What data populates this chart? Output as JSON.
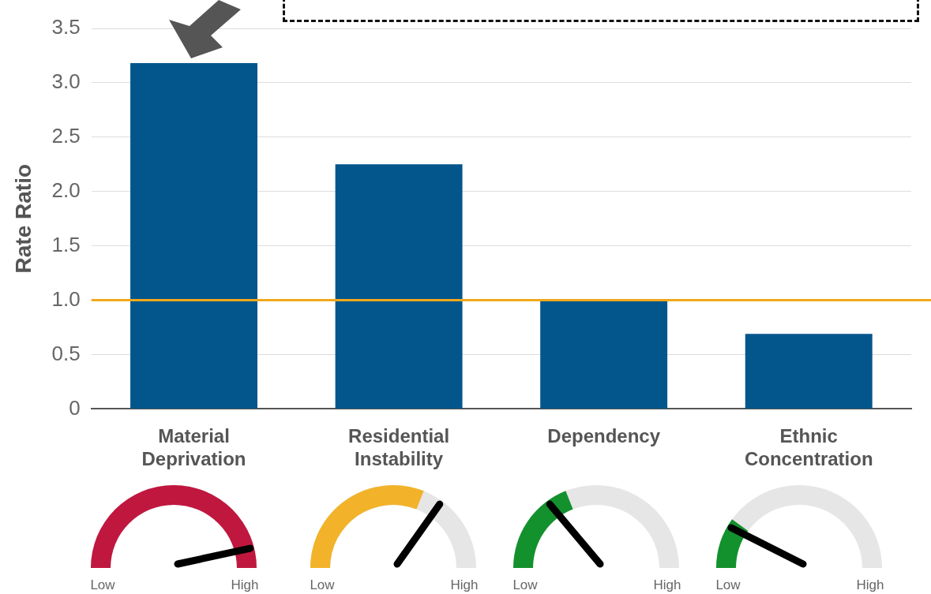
{
  "chart_data": {
    "type": "bar",
    "ylabel": "Rate Ratio",
    "categories": [
      "Material Deprivation",
      "Residential Instability",
      "Dependency",
      "Ethnic Concentration"
    ],
    "values": [
      3.18,
      2.25,
      1.0,
      0.69
    ],
    "color": "#03568c",
    "ylim": [
      0,
      3.5
    ],
    "yticks": [
      0,
      0.5,
      {
        "value": 1,
        "label": "1.0"
      },
      1.5,
      {
        "value": 2,
        "label": "2.0"
      },
      2.5,
      {
        "value": 3,
        "label": "3.0"
      },
      3.5
    ],
    "grid": "y",
    "legend": false,
    "ref_lines": [
      {
        "axis": "y",
        "value": 1,
        "color": "#f0a81c"
      }
    ],
    "annotations": [
      "Low",
      "High",
      "Low",
      "High",
      "Low",
      "High",
      "Low",
      "High"
    ]
  }
}
